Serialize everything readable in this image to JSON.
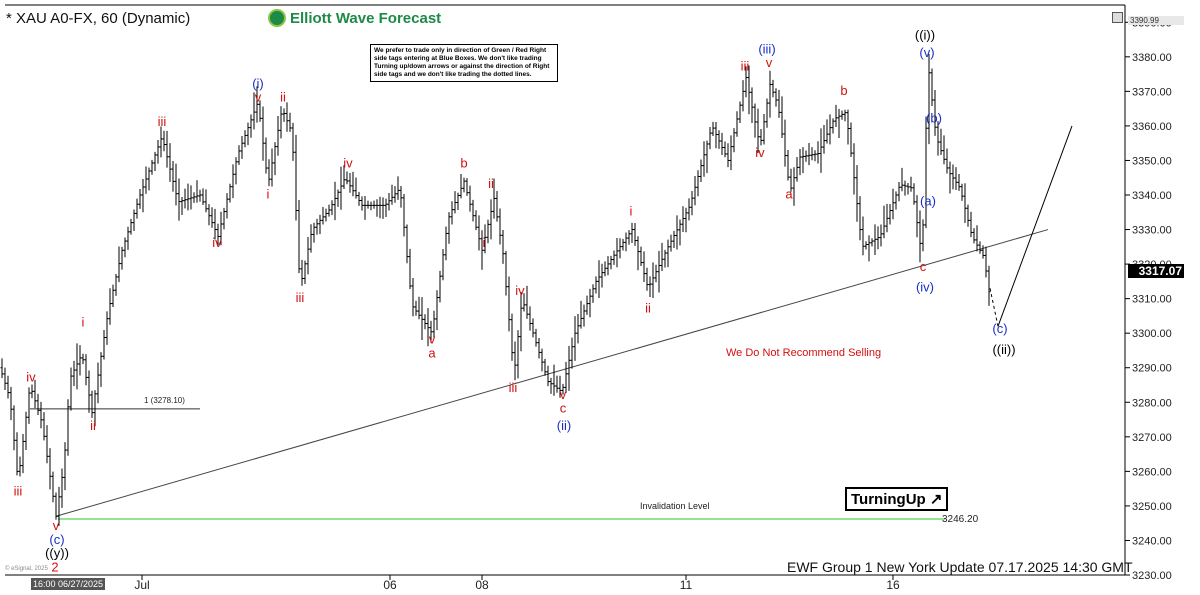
{
  "header": {
    "title": "* XAU A0-FX, 60 (Dynamic)",
    "brand": "Elliott Wave Forecast",
    "notice": "We prefer to trade only in direction of Green / Red Right side tags entering at Blue Boxes. We don't like trading Turning up/down arrows or against the direction of Right side tags and we don't like trading the dotted lines."
  },
  "annotations": {
    "no_sell": "We Do Not Recommend Selling",
    "invalidation_label": "Invalidation Level",
    "invalidation_price": "3246.20",
    "fib_level": "1 (3278.10)",
    "turning": "TurningUp ↗",
    "footer": "EWF Group 1 New York Update 07.17.2025 14:30 GMT",
    "esignal": "© eSignal, 2025",
    "last_price": "3317.07",
    "top_price": "3390.99",
    "date_box": "16:00 06/27/2025"
  },
  "colors": {
    "red": "#d21010",
    "blue": "#1a2fc7",
    "black": "#000000",
    "green_line": "#22cc22",
    "brand_green": "#1e8a47"
  },
  "chart_data": {
    "type": "bar",
    "instrument": "XAU A0-FX",
    "timeframe": "60",
    "ylim": [
      3230,
      3395
    ],
    "yticks": [
      3230,
      3240,
      3250,
      3260,
      3270,
      3280,
      3290,
      3300,
      3310,
      3320,
      3330,
      3340,
      3350,
      3360,
      3370,
      3380,
      3390
    ],
    "xticks": [
      "Jul",
      "06",
      "08",
      "11",
      "16"
    ],
    "last_price": 3317.07,
    "invalidation_level": 3246.2,
    "fib_extension": 3278.1,
    "waypoints": [
      [
        0,
        3290
      ],
      [
        10,
        3281
      ],
      [
        18,
        3257
      ],
      [
        30,
        3285
      ],
      [
        42,
        3274
      ],
      [
        56,
        3247
      ],
      [
        64,
        3262
      ],
      [
        70,
        3287
      ],
      [
        82,
        3294
      ],
      [
        92,
        3277
      ],
      [
        108,
        3306
      ],
      [
        122,
        3324
      ],
      [
        140,
        3340
      ],
      [
        162,
        3357
      ],
      [
        178,
        3338
      ],
      [
        200,
        3340
      ],
      [
        218,
        3328
      ],
      [
        238,
        3352
      ],
      [
        258,
        3367
      ],
      [
        268,
        3343
      ],
      [
        282,
        3365
      ],
      [
        292,
        3358
      ],
      [
        300,
        3313
      ],
      [
        312,
        3330
      ],
      [
        330,
        3336
      ],
      [
        345,
        3345
      ],
      [
        362,
        3337
      ],
      [
        385,
        3337
      ],
      [
        400,
        3342
      ],
      [
        412,
        3308
      ],
      [
        432,
        3300
      ],
      [
        448,
        3333
      ],
      [
        464,
        3344
      ],
      [
        482,
        3324
      ],
      [
        494,
        3339
      ],
      [
        503,
        3323
      ],
      [
        514,
        3288
      ],
      [
        522,
        3310
      ],
      [
        532,
        3301
      ],
      [
        548,
        3286
      ],
      [
        562,
        3283
      ],
      [
        575,
        3300
      ],
      [
        596,
        3315
      ],
      [
        615,
        3323
      ],
      [
        632,
        3330
      ],
      [
        648,
        3313
      ],
      [
        668,
        3325
      ],
      [
        690,
        3337
      ],
      [
        712,
        3360
      ],
      [
        728,
        3350
      ],
      [
        746,
        3374
      ],
      [
        760,
        3354
      ],
      [
        770,
        3372
      ],
      [
        778,
        3366
      ],
      [
        790,
        3341
      ],
      [
        800,
        3351
      ],
      [
        818,
        3352
      ],
      [
        834,
        3362
      ],
      [
        846,
        3364
      ],
      [
        854,
        3345
      ],
      [
        862,
        3325
      ],
      [
        880,
        3328
      ],
      [
        900,
        3343
      ],
      [
        912,
        3342
      ],
      [
        922,
        3322
      ],
      [
        928,
        3378
      ],
      [
        936,
        3357
      ],
      [
        948,
        3347
      ],
      [
        960,
        3342
      ],
      [
        972,
        3328
      ],
      [
        984,
        3322
      ],
      [
        990,
        3310
      ]
    ],
    "projection": [
      [
        990,
        3313
      ],
      [
        998,
        3302
      ],
      [
        1072,
        3360
      ]
    ],
    "trendline": [
      [
        56,
        3247
      ],
      [
        1048,
        3330
      ]
    ],
    "wave_labels": [
      {
        "text": "((i))",
        "x": 925,
        "y": 3385,
        "color": "black"
      },
      {
        "text": "(v)",
        "x": 927,
        "y": 3380,
        "color": "blue"
      },
      {
        "text": "(iii)",
        "x": 767,
        "y": 3381,
        "color": "blue"
      },
      {
        "text": "iii",
        "x": 745,
        "y": 3376,
        "color": "red"
      },
      {
        "text": "v",
        "x": 769,
        "y": 3377,
        "color": "red"
      },
      {
        "text": "iv",
        "x": 760,
        "y": 3351,
        "color": "red"
      },
      {
        "text": "b",
        "x": 844,
        "y": 3369,
        "color": "red"
      },
      {
        "text": "a",
        "x": 789,
        "y": 3339,
        "color": "red"
      },
      {
        "text": "(b)",
        "x": 934,
        "y": 3361,
        "color": "blue"
      },
      {
        "text": "(a)",
        "x": 928,
        "y": 3337,
        "color": "blue"
      },
      {
        "text": "c",
        "x": 923,
        "y": 3318,
        "color": "red"
      },
      {
        "text": "(iv)",
        "x": 925,
        "y": 3312,
        "color": "blue"
      },
      {
        "text": "(c)",
        "x": 1000,
        "y": 3300,
        "color": "blue"
      },
      {
        "text": "((ii))",
        "x": 1004,
        "y": 3294,
        "color": "black"
      },
      {
        "text": "(i)",
        "x": 258,
        "y": 3371,
        "color": "blue"
      },
      {
        "text": "v",
        "x": 258,
        "y": 3367,
        "color": "red"
      },
      {
        "text": "iii",
        "x": 162,
        "y": 3360,
        "color": "red"
      },
      {
        "text": "ii",
        "x": 283,
        "y": 3367,
        "color": "red"
      },
      {
        "text": "i",
        "x": 268,
        "y": 3339,
        "color": "red"
      },
      {
        "text": "iv",
        "x": 217,
        "y": 3325,
        "color": "red"
      },
      {
        "text": "iii",
        "x": 300,
        "y": 3309,
        "color": "red"
      },
      {
        "text": "iv",
        "x": 348,
        "y": 3348,
        "color": "red"
      },
      {
        "text": "b",
        "x": 464,
        "y": 3348,
        "color": "red"
      },
      {
        "text": "ii",
        "x": 491,
        "y": 3342,
        "color": "red"
      },
      {
        "text": "i",
        "x": 484,
        "y": 3325,
        "color": "red"
      },
      {
        "text": "iv",
        "x": 520,
        "y": 3311,
        "color": "red"
      },
      {
        "text": "iii",
        "x": 513,
        "y": 3283,
        "color": "red"
      },
      {
        "text": "v",
        "x": 432,
        "y": 3297,
        "color": "red"
      },
      {
        "text": "a",
        "x": 432,
        "y": 3293,
        "color": "red"
      },
      {
        "text": "v",
        "x": 563,
        "y": 3281,
        "color": "red"
      },
      {
        "text": "c",
        "x": 563,
        "y": 3277,
        "color": "red"
      },
      {
        "text": "(ii)",
        "x": 564,
        "y": 3272,
        "color": "blue"
      },
      {
        "text": "i",
        "x": 631,
        "y": 3334,
        "color": "red"
      },
      {
        "text": "ii",
        "x": 648,
        "y": 3306,
        "color": "red"
      },
      {
        "text": "iv",
        "x": 31,
        "y": 3286,
        "color": "red"
      },
      {
        "text": "i",
        "x": 83,
        "y": 3302,
        "color": "red"
      },
      {
        "text": "ii",
        "x": 93,
        "y": 3272,
        "color": "red"
      },
      {
        "text": "iii",
        "x": 18,
        "y": 3253,
        "color": "red"
      },
      {
        "text": "v",
        "x": 56,
        "y": 3243,
        "color": "red"
      },
      {
        "text": "(c)",
        "x": 57,
        "y": 3239,
        "color": "blue"
      },
      {
        "text": "((y))",
        "x": 57,
        "y": 3235,
        "color": "black"
      },
      {
        "text": "2",
        "x": 55,
        "y": 3231,
        "color": "red"
      }
    ]
  }
}
